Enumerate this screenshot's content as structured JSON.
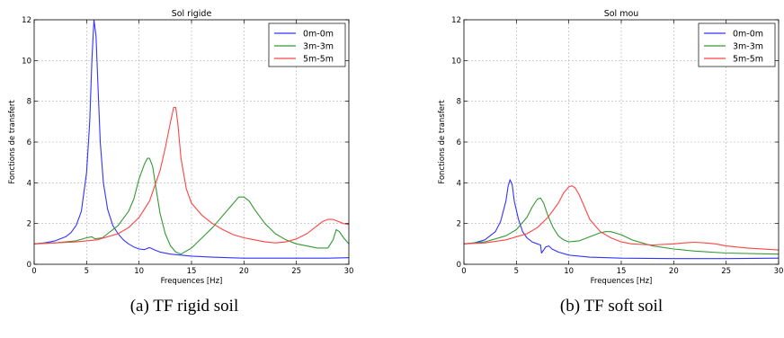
{
  "chart_data": [
    {
      "type": "line",
      "title": "Sol rigide",
      "xlabel": "Frequences [Hz]",
      "ylabel": "Fonctions de transfert",
      "xlim": [
        0,
        30
      ],
      "ylim": [
        0,
        12
      ],
      "xticks": [
        0,
        5,
        10,
        15,
        20,
        25,
        30
      ],
      "yticks": [
        0,
        2,
        4,
        6,
        8,
        10,
        12
      ],
      "grid": true,
      "legend_position": "top-right",
      "caption": "(a) TF rigid soil",
      "series": [
        {
          "name": "0m-0m",
          "color": "#3333ff",
          "x": [
            0,
            1,
            2,
            3,
            3.5,
            4,
            4.5,
            5,
            5.3,
            5.5,
            5.7,
            5.9,
            6.1,
            6.3,
            6.6,
            7,
            7.5,
            8,
            8.5,
            9,
            9.5,
            10,
            10.5,
            11,
            11.5,
            12,
            13,
            14,
            15,
            17,
            20,
            23,
            26,
            28,
            30
          ],
          "y": [
            1.0,
            1.05,
            1.15,
            1.35,
            1.55,
            1.9,
            2.6,
            4.5,
            7.0,
            10.0,
            12.0,
            11.2,
            8.5,
            6.0,
            4.0,
            2.7,
            1.9,
            1.5,
            1.2,
            1.0,
            0.85,
            0.75,
            0.72,
            0.82,
            0.7,
            0.6,
            0.5,
            0.45,
            0.4,
            0.35,
            0.3,
            0.3,
            0.3,
            0.3,
            0.32
          ]
        },
        {
          "name": "3m-3m",
          "color": "#339933",
          "x": [
            0,
            2,
            4,
            5,
            5.5,
            5.8,
            6.5,
            7,
            8,
            9,
            9.5,
            10,
            10.5,
            10.8,
            11,
            11.3,
            11.6,
            12,
            12.5,
            13,
            13.5,
            14,
            15,
            16,
            17,
            18,
            19,
            19.5,
            20,
            20.5,
            21,
            22,
            23,
            24,
            25,
            26,
            27,
            28,
            28.5,
            28.8,
            29.1,
            29.5,
            30
          ],
          "y": [
            1.0,
            1.05,
            1.15,
            1.3,
            1.35,
            1.25,
            1.3,
            1.5,
            1.9,
            2.6,
            3.2,
            4.2,
            4.9,
            5.2,
            5.2,
            4.8,
            3.8,
            2.5,
            1.5,
            0.9,
            0.6,
            0.5,
            0.8,
            1.3,
            1.8,
            2.4,
            3.0,
            3.3,
            3.3,
            3.1,
            2.7,
            2.0,
            1.5,
            1.2,
            1.0,
            0.9,
            0.8,
            0.8,
            1.2,
            1.7,
            1.6,
            1.3,
            1.0
          ]
        },
        {
          "name": "5m-5m",
          "color": "#ff4444",
          "x": [
            0,
            2,
            4,
            6,
            8,
            9,
            10,
            11,
            12,
            12.5,
            13,
            13.3,
            13.5,
            13.7,
            14,
            14.5,
            15,
            16,
            17,
            18,
            19,
            20,
            21,
            22,
            23,
            24,
            25,
            26,
            27,
            27.5,
            28,
            28.5,
            29,
            29.5,
            30
          ],
          "y": [
            1.0,
            1.05,
            1.1,
            1.2,
            1.5,
            1.8,
            2.3,
            3.1,
            4.6,
            5.7,
            7.0,
            7.7,
            7.7,
            6.9,
            5.2,
            3.7,
            3.0,
            2.4,
            2.0,
            1.7,
            1.45,
            1.3,
            1.2,
            1.1,
            1.05,
            1.1,
            1.25,
            1.5,
            1.9,
            2.1,
            2.2,
            2.2,
            2.1,
            2.0,
            1.95
          ]
        }
      ]
    },
    {
      "type": "line",
      "title": "Sol mou",
      "xlabel": "Frequences [Hz]",
      "ylabel": "Fonctions de transfert",
      "xlim": [
        0,
        30
      ],
      "ylim": [
        0,
        12
      ],
      "xticks": [
        0,
        5,
        10,
        15,
        20,
        25,
        30
      ],
      "yticks": [
        0,
        2,
        4,
        6,
        8,
        10,
        12
      ],
      "grid": true,
      "legend_position": "top-right",
      "caption": "(b) TF soft soil",
      "series": [
        {
          "name": "0m-0m",
          "color": "#3333ff",
          "x": [
            0,
            1,
            2,
            3,
            3.5,
            4,
            4.2,
            4.4,
            4.6,
            4.8,
            5.2,
            5.6,
            6,
            6.5,
            7,
            7.3,
            7.4,
            7.6,
            7.8,
            8.1,
            8.4,
            9,
            10,
            12,
            15,
            20,
            25,
            30
          ],
          "y": [
            1.0,
            1.05,
            1.2,
            1.6,
            2.1,
            3.1,
            3.8,
            4.15,
            3.9,
            3.1,
            2.2,
            1.6,
            1.3,
            1.1,
            1.0,
            0.95,
            0.55,
            0.7,
            0.85,
            0.9,
            0.75,
            0.6,
            0.45,
            0.35,
            0.3,
            0.28,
            0.28,
            0.3
          ]
        },
        {
          "name": "3m-3m",
          "color": "#339933",
          "x": [
            0,
            2,
            4,
            5,
            6,
            6.5,
            7,
            7.3,
            7.6,
            8,
            8.5,
            9,
            9.5,
            10,
            11,
            12,
            13,
            13.5,
            14,
            15,
            16,
            18,
            20,
            22,
            25,
            30
          ],
          "y": [
            1.0,
            1.1,
            1.4,
            1.7,
            2.3,
            2.8,
            3.2,
            3.25,
            3.0,
            2.4,
            1.8,
            1.4,
            1.2,
            1.1,
            1.15,
            1.35,
            1.55,
            1.6,
            1.6,
            1.45,
            1.2,
            0.9,
            0.75,
            0.65,
            0.55,
            0.5
          ]
        },
        {
          "name": "5m-5m",
          "color": "#ff4444",
          "x": [
            0,
            2,
            4,
            6,
            7,
            8,
            9,
            9.5,
            10,
            10.3,
            10.6,
            11,
            11.5,
            12,
            13,
            14,
            15,
            16,
            18,
            20,
            21,
            22,
            23,
            24,
            25,
            27,
            30
          ],
          "y": [
            1.0,
            1.05,
            1.2,
            1.5,
            1.8,
            2.3,
            3.0,
            3.5,
            3.8,
            3.85,
            3.75,
            3.4,
            2.8,
            2.2,
            1.6,
            1.3,
            1.1,
            1.0,
            0.95,
            1.0,
            1.05,
            1.08,
            1.05,
            1.0,
            0.9,
            0.8,
            0.7
          ]
        }
      ]
    }
  ]
}
